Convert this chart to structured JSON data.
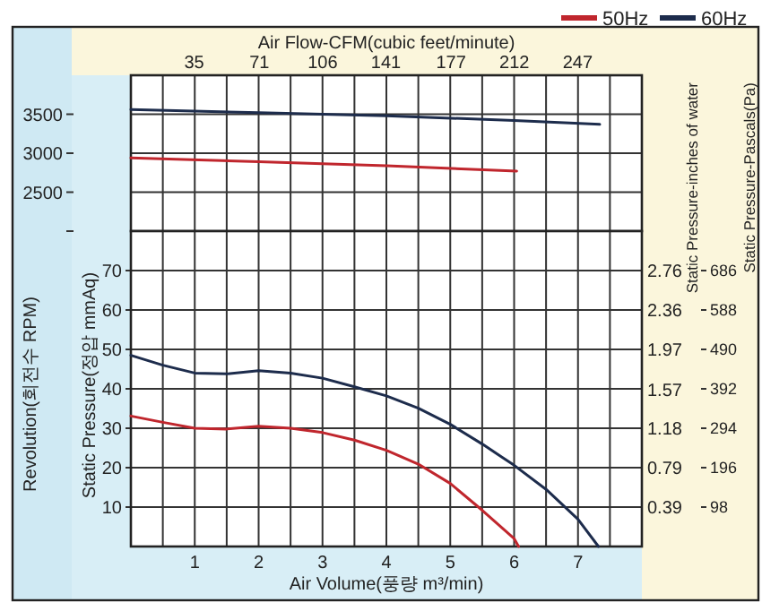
{
  "chart_data": [
    {
      "type": "line",
      "ylabel": "Revolution(회전수 RPM)",
      "x2label": "Air Flow-CFM(cubic feet/minute)",
      "xlim": [
        0,
        8
      ],
      "xticks": [
        {
          "value": 0.5,
          "label": null
        },
        {
          "value": 1,
          "label": null
        },
        {
          "value": 1.5,
          "label": null
        },
        {
          "value": 2,
          "label": null
        },
        {
          "value": 2.5,
          "label": null
        },
        {
          "value": 3,
          "label": null
        },
        {
          "value": 3.5,
          "label": null
        },
        {
          "value": 4,
          "label": null
        },
        {
          "value": 4.5,
          "label": null
        },
        {
          "value": 5,
          "label": null
        },
        {
          "value": 5.5,
          "label": null
        },
        {
          "value": 6,
          "label": null
        },
        {
          "value": 6.5,
          "label": null
        },
        {
          "value": 7,
          "label": null
        },
        {
          "value": 7.5,
          "label": null
        }
      ],
      "x2lim": [
        0,
        282.5
      ],
      "x2ticks": [
        35,
        71,
        106,
        141,
        177,
        212,
        247
      ],
      "ylim": [
        2000,
        4000
      ],
      "yticks": [
        {
          "value": 2000,
          "label": null
        },
        2500,
        3000,
        3500
      ],
      "grid": true,
      "legend": "top right",
      "tick_labels": "y",
      "series": [
        {
          "name": "50Hz",
          "color": "#c0262d",
          "x": [
            0,
            2,
            4,
            6.04
          ],
          "values": [
            2940,
            2890,
            2840,
            2770
          ]
        },
        {
          "name": "60Hz",
          "color": "#1d2c4c",
          "x": [
            0,
            2,
            4,
            6,
            7.34
          ],
          "values": [
            3560,
            3520,
            3480,
            3420,
            3370
          ]
        }
      ]
    },
    {
      "type": "line",
      "xlabel": "Air Volume(풍량 m³/min)",
      "ylabel": "Static Pressure(정압 mmAq)",
      "y2label": "Static Pressure-inches of water",
      "y3label": "Static Pressure-Pascals(Pa)",
      "xlim": [
        0,
        8
      ],
      "xticks": [
        {
          "value": 0.5,
          "label": null
        },
        1,
        {
          "value": 1.5,
          "label": null
        },
        2,
        {
          "value": 2.5,
          "label": null
        },
        3,
        {
          "value": 3.5,
          "label": null
        },
        4,
        {
          "value": 4.5,
          "label": null
        },
        5,
        {
          "value": 5.5,
          "label": null
        },
        6,
        {
          "value": 6.5,
          "label": null
        },
        7,
        {
          "value": 7.5,
          "label": null
        }
      ],
      "ylim": [
        0,
        80
      ],
      "yticks": [
        10,
        20,
        30,
        40,
        50,
        60,
        70
      ],
      "y2lim": [
        0,
        3.15
      ],
      "y2ticks": [
        0.39,
        0.79,
        1.18,
        1.57,
        1.97,
        2.36,
        2.76
      ],
      "y3lim": [
        0,
        784
      ],
      "y3ticks": [
        98,
        196,
        294,
        392,
        490,
        588,
        686
      ],
      "grid": true,
      "series": [
        {
          "color": "#c0262d",
          "x": [
            0,
            0.5,
            1,
            1.5,
            2,
            2.5,
            3,
            3.5,
            4,
            4.5,
            5,
            5.5,
            6,
            6.07
          ],
          "values": [
            33.1,
            31.5,
            30,
            29.8,
            30.5,
            30,
            28.9,
            27,
            24.4,
            20.9,
            16,
            9.2,
            2,
            0
          ]
        },
        {
          "color": "#1d2c4c",
          "x": [
            0,
            0.5,
            1,
            1.5,
            2,
            2.5,
            3,
            3.5,
            4,
            4.5,
            5,
            5.5,
            6,
            6.5,
            7,
            7.32
          ],
          "values": [
            48.5,
            46,
            44,
            43.8,
            44.6,
            44,
            42.7,
            40.5,
            38.2,
            35.1,
            31,
            26,
            20.6,
            14.5,
            6.9,
            0
          ]
        }
      ]
    }
  ]
}
